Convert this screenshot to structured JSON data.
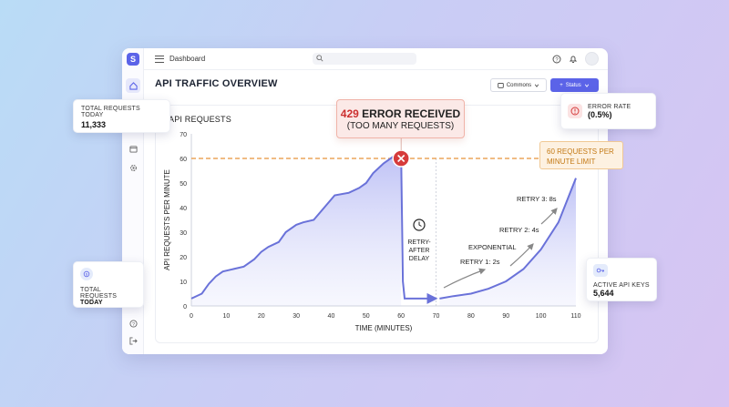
{
  "app": {
    "logo_glyph": "S",
    "breadcrumb": "Dashboard",
    "page_title": "API TRAFFIC OVERVIEW",
    "select_label": "Commons",
    "status_label": "Status",
    "accent": "#5b63e8"
  },
  "sidebar": {
    "icons": [
      "home-icon",
      "calendar-icon",
      "settings-icon",
      "help-icon",
      "logout-icon"
    ]
  },
  "panel": {
    "title": "API REQUESTS"
  },
  "cards": {
    "total_top": {
      "label": "TOTAL REQUESTS TODAY",
      "value": "11,333"
    },
    "error_rate": {
      "label": "ERROR RATE",
      "value": "(0.5%)"
    },
    "total_bottom": {
      "label_1": "TOTAL REQUESTS",
      "label_2": "TODAY"
    },
    "api_keys": {
      "label": "ACTIVE API KEYS",
      "value": "5,644"
    }
  },
  "callouts": {
    "error_code": "429",
    "error_text": "ERROR RECEIVED",
    "error_sub": "(TOO MANY REQUESTS)",
    "limit": "60 REQUESTS PER MINUTE LIMIT"
  },
  "chart_data": {
    "type": "line",
    "xlabel": "TIME (MINUTES)",
    "ylabel": "API REQUESTS PER MINUTE",
    "xlim": [
      0,
      110
    ],
    "ylim": [
      0,
      70
    ],
    "xticks": [
      0,
      10,
      20,
      30,
      40,
      50,
      60,
      70,
      80,
      90,
      100,
      110
    ],
    "yticks": [
      0,
      10,
      20,
      30,
      40,
      50,
      60,
      70
    ],
    "series": [
      {
        "x": [
          0,
          3,
          5,
          7,
          9,
          12,
          15,
          18,
          20,
          22,
          25,
          27,
          30,
          32,
          35,
          38,
          41,
          45,
          48,
          50,
          52,
          55,
          58,
          60
        ],
        "y": [
          3,
          5,
          9,
          12,
          14,
          15,
          16,
          19,
          22,
          24,
          26,
          30,
          33,
          34,
          35,
          40,
          45,
          46,
          48,
          50,
          54,
          58,
          61,
          62
        ]
      },
      {
        "x": [
          60,
          60.5,
          61,
          70
        ],
        "y": [
          62,
          10,
          3,
          3
        ]
      },
      {
        "x": [
          71,
          75,
          80,
          85,
          90,
          95,
          100,
          105,
          110
        ],
        "y": [
          3,
          4,
          5,
          7,
          10,
          15,
          23,
          34,
          52
        ]
      }
    ],
    "limit_line": 60,
    "annotations": {
      "retry_after": [
        "RETRY-",
        "AFTER",
        "DELAY"
      ],
      "exponential": "EXPONENTIAL",
      "retry1": "RETRY 1: 2s",
      "retry2": "RETRY 2: 4s",
      "retry3": "RETRY 3: 8s"
    },
    "colors": {
      "line": "#6a72d9",
      "limit": "#e8933a",
      "error": "#d63b3b"
    }
  }
}
